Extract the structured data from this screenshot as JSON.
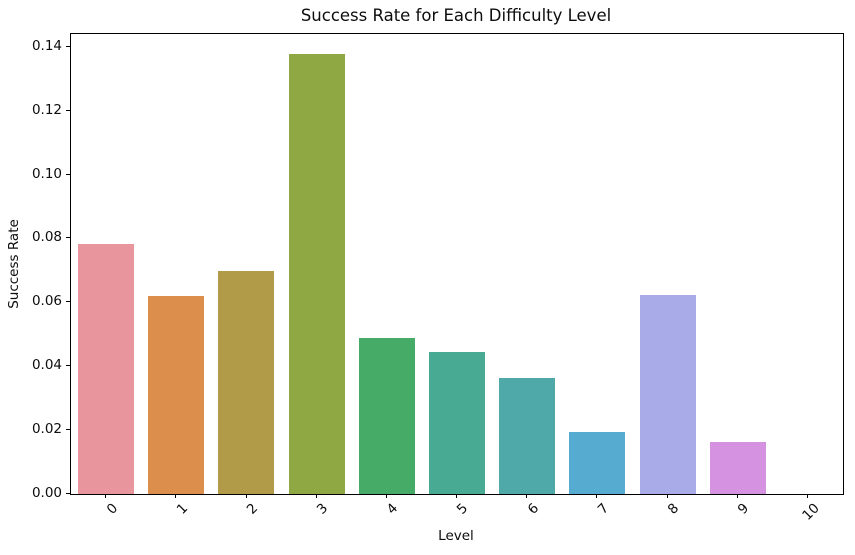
{
  "chart_data": {
    "type": "bar",
    "title": "Success Rate for Each Difficulty Level",
    "xlabel": "Level",
    "ylabel": "Success Rate",
    "categories": [
      "0",
      "1",
      "2",
      "3",
      "4",
      "5",
      "6",
      "7",
      "8",
      "9",
      "10"
    ],
    "values": [
      0.0783,
      0.0621,
      0.0698,
      0.1376,
      0.0487,
      0.0444,
      0.0363,
      0.0195,
      0.0623,
      0.0162,
      0.0
    ],
    "bar_colors": [
      "#e8959e",
      "#dc8f4d",
      "#b29b48",
      "#8fa843",
      "#46ab66",
      "#49aa94",
      "#4fa9a8",
      "#56abd1",
      "#a9aae8",
      "#d592e1",
      "#ed8dc1"
    ],
    "ylim": [
      0,
      0.144
    ],
    "yticks": [
      "0.00",
      "0.02",
      "0.04",
      "0.06",
      "0.08",
      "0.10",
      "0.12",
      "0.14"
    ],
    "ytick_values": [
      0.0,
      0.02,
      0.04,
      0.06,
      0.08,
      0.1,
      0.12,
      0.14
    ],
    "xtick_rotation": 45,
    "grid": false,
    "legend": "none",
    "background": "#ffffff",
    "spine_color": "#000000",
    "bar_width_fraction": 0.8
  }
}
